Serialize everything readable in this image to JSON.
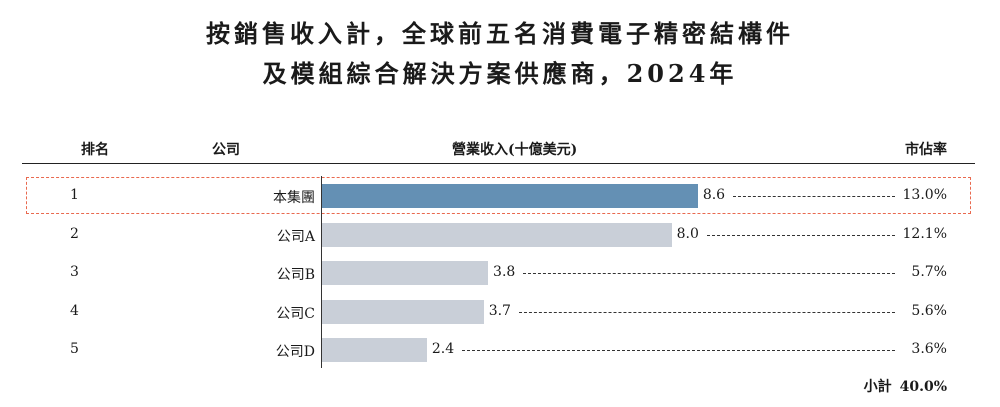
{
  "title_line1": "按銷售收入計，全球前五名消費電子精密結構件",
  "title_line2": "及模組綜合解決方案供應商，2024年",
  "headers": {
    "rank": "排名",
    "company": "公司",
    "revenue": "營業收入(十億美元)",
    "share": "市佔率"
  },
  "subtotal": {
    "label": "小計",
    "value": "40.0%"
  },
  "colors": {
    "highlight_bar": "#6490b4",
    "other_bar": "#c9cfd8",
    "highlight_border": "#e9694f"
  },
  "chart_data": {
    "type": "bar",
    "orientation": "horizontal",
    "unit": "十億美元",
    "rows": [
      {
        "rank": "1",
        "company": "本集團",
        "value": 8.6,
        "value_label": "8.6",
        "share": "13.0%",
        "highlight": true
      },
      {
        "rank": "2",
        "company": "公司A",
        "value": 8.0,
        "value_label": "8.0",
        "share": "12.1%",
        "highlight": false
      },
      {
        "rank": "3",
        "company": "公司B",
        "value": 3.8,
        "value_label": "3.8",
        "share": "5.7%",
        "highlight": false
      },
      {
        "rank": "4",
        "company": "公司C",
        "value": 3.7,
        "value_label": "3.7",
        "share": "5.6%",
        "highlight": false
      },
      {
        "rank": "5",
        "company": "公司D",
        "value": 2.4,
        "value_label": "2.4",
        "share": "3.6%",
        "highlight": false
      }
    ]
  }
}
